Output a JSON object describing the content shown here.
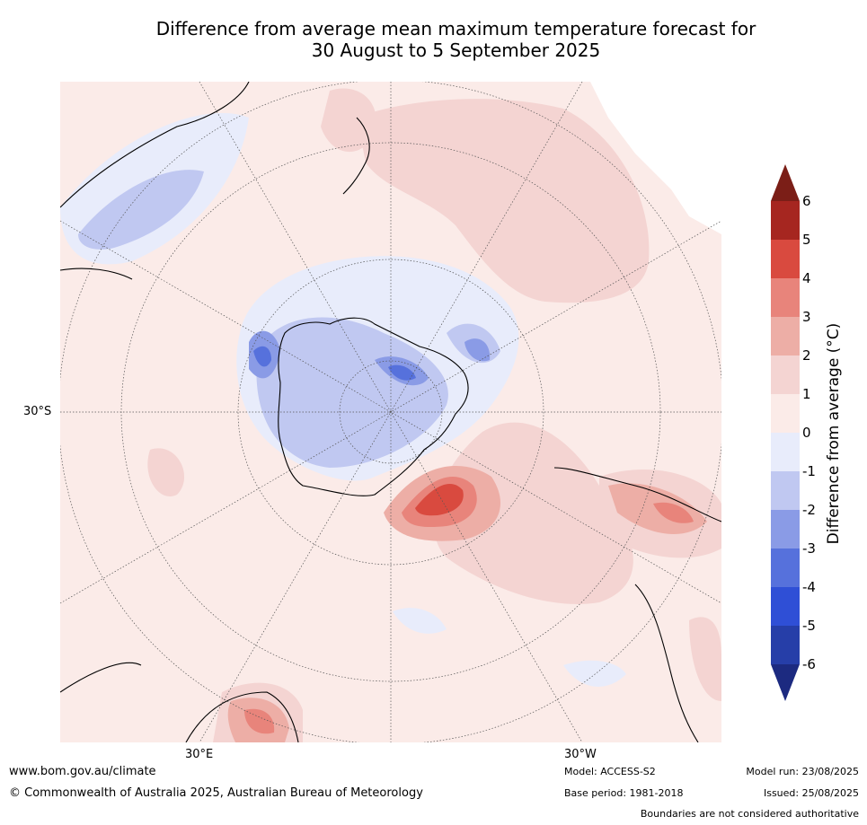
{
  "title_line1": "Difference from average mean maximum temperature forecast for",
  "title_line2": "30 August to 5 September 2025",
  "map": {
    "projection": "south polar stereographic",
    "lat_label": "30°S",
    "lon_labels": [
      "30°E",
      "30°W"
    ]
  },
  "colorbar": {
    "label": "Difference from average (°C)",
    "ticks": [
      "6",
      "5",
      "4",
      "3",
      "2",
      "1",
      "0",
      "-1",
      "-2",
      "-3",
      "-4",
      "-5",
      "-6"
    ],
    "colors": [
      "#7b1e17",
      "#a62620",
      "#d94a3f",
      "#e8847b",
      "#edaea6",
      "#f4d4d2",
      "#fbebe8",
      "#e8ecfb",
      "#c0c8f1",
      "#8a9be6",
      "#5671dc",
      "#2f4fd6",
      "#263ea8",
      "#1c2a80"
    ]
  },
  "footer": {
    "website": "www.bom.gov.au/climate",
    "copyright": "© Commonwealth of Australia 2025, Australian Bureau of Meteorology",
    "model": "Model: ACCESS-S2",
    "base_period": "Base period: 1981-2018",
    "model_run": "Model run: 23/08/2025",
    "issued": "Issued: 25/08/2025",
    "disclaimer": "Boundaries are not considered authoritative"
  }
}
